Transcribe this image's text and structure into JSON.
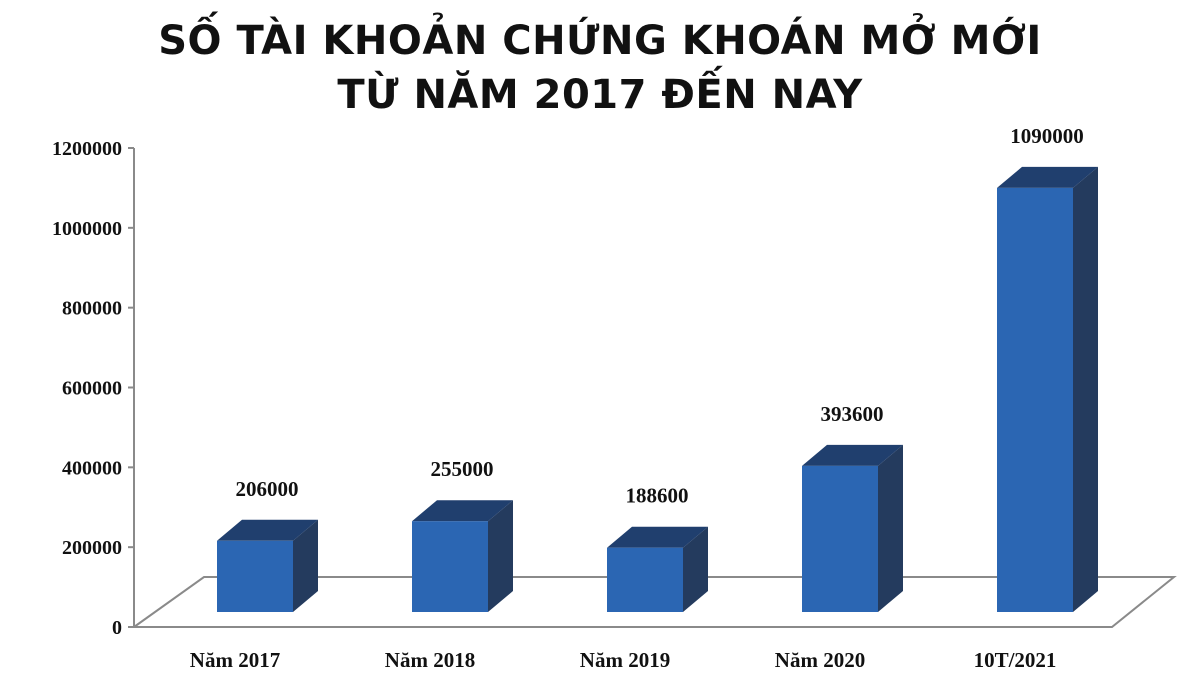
{
  "title": {
    "line1": "SỐ TÀI KHOẢN CHỨNG KHOÁN MỞ MỚI",
    "line2": "TỪ NĂM 2017 ĐẾN NAY"
  },
  "colors": {
    "bar_front": "#2b66b3",
    "bar_top": "#203f6e",
    "bar_side": "#243b5e",
    "axis": "#8a8a8a"
  },
  "chart_data": {
    "type": "bar",
    "title": "SỐ TÀI KHOẢN CHỨNG KHOÁN MỞ MỚI TỪ NĂM 2017 ĐẾN NAY",
    "categories": [
      "Năm 2017",
      "Năm 2018",
      "Năm 2019",
      "Năm 2020",
      "10T/2021"
    ],
    "values": [
      206000,
      255000,
      188600,
      393600,
      1090000
    ],
    "value_labels": [
      "206000",
      "255000",
      "188600",
      "393600",
      "1090000"
    ],
    "ylim": [
      0,
      1200000
    ],
    "yticks": [
      0,
      200000,
      400000,
      600000,
      800000,
      1000000,
      1200000
    ],
    "ytick_labels": [
      "0",
      "200000",
      "400000",
      "600000",
      "800000",
      "1000000",
      "1200000"
    ],
    "grid": false,
    "legend": "none",
    "style": "3d"
  }
}
